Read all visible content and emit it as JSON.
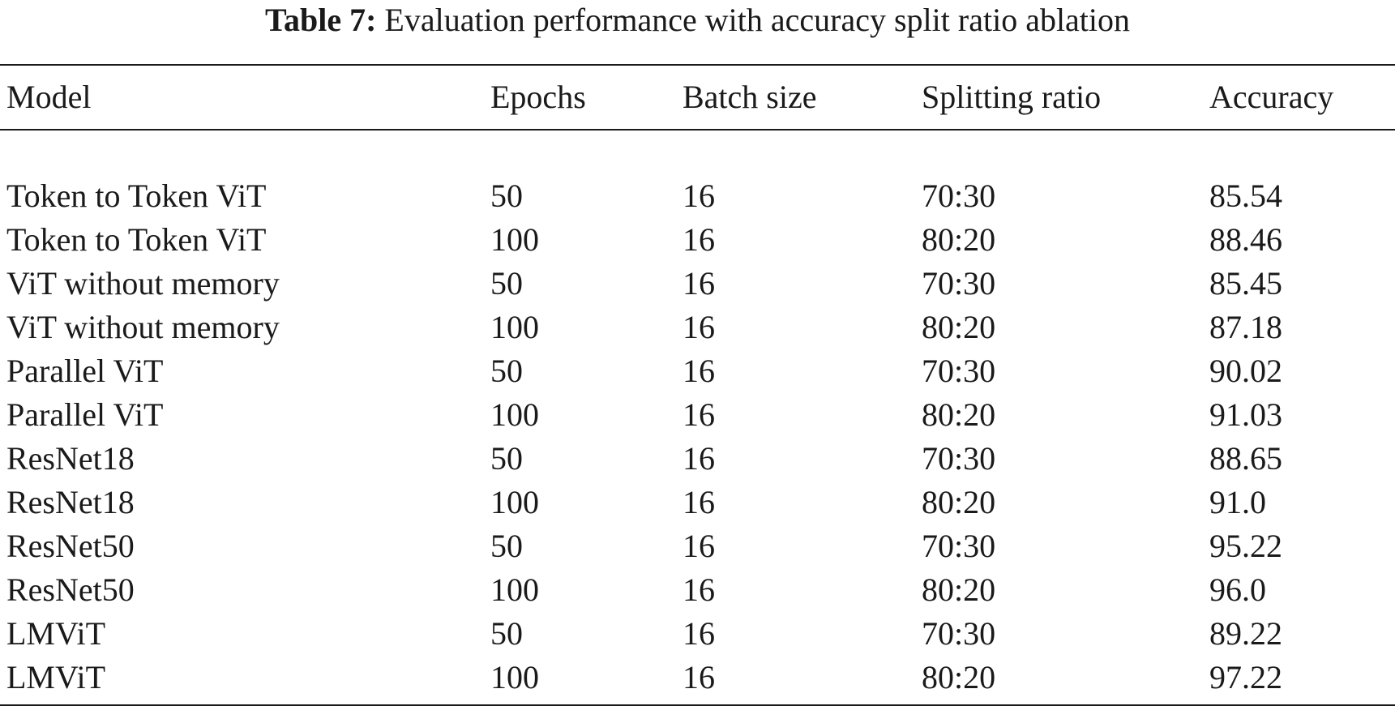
{
  "caption": {
    "label": "Table 7:",
    "text": "Evaluation performance with accuracy split ratio ablation"
  },
  "table": {
    "headers": [
      "Model",
      "Epochs",
      "Batch size",
      "Splitting ratio",
      "Accuracy"
    ],
    "rows": [
      [
        "Token to Token ViT",
        "50",
        "16",
        "70:30",
        "85.54"
      ],
      [
        "Token to Token ViT",
        "100",
        "16",
        "80:20",
        "88.46"
      ],
      [
        "ViT without memory",
        "50",
        "16",
        "70:30",
        "85.45"
      ],
      [
        "ViT without memory",
        "100",
        "16",
        "80:20",
        "87.18"
      ],
      [
        "Parallel ViT",
        "50",
        "16",
        "70:30",
        "90.02"
      ],
      [
        "Parallel ViT",
        "100",
        "16",
        "80:20",
        "91.03"
      ],
      [
        "ResNet18",
        "50",
        "16",
        "70:30",
        "88.65"
      ],
      [
        "ResNet18",
        "100",
        "16",
        "80:20",
        "91.0"
      ],
      [
        "ResNet50",
        "50",
        "16",
        "70:30",
        "95.22"
      ],
      [
        "ResNet50",
        "100",
        "16",
        "80:20",
        "96.0"
      ],
      [
        "LMViT",
        "50",
        "16",
        "70:30",
        "89.22"
      ],
      [
        "LMViT",
        "100",
        "16",
        "80:20",
        "97.22"
      ]
    ]
  }
}
